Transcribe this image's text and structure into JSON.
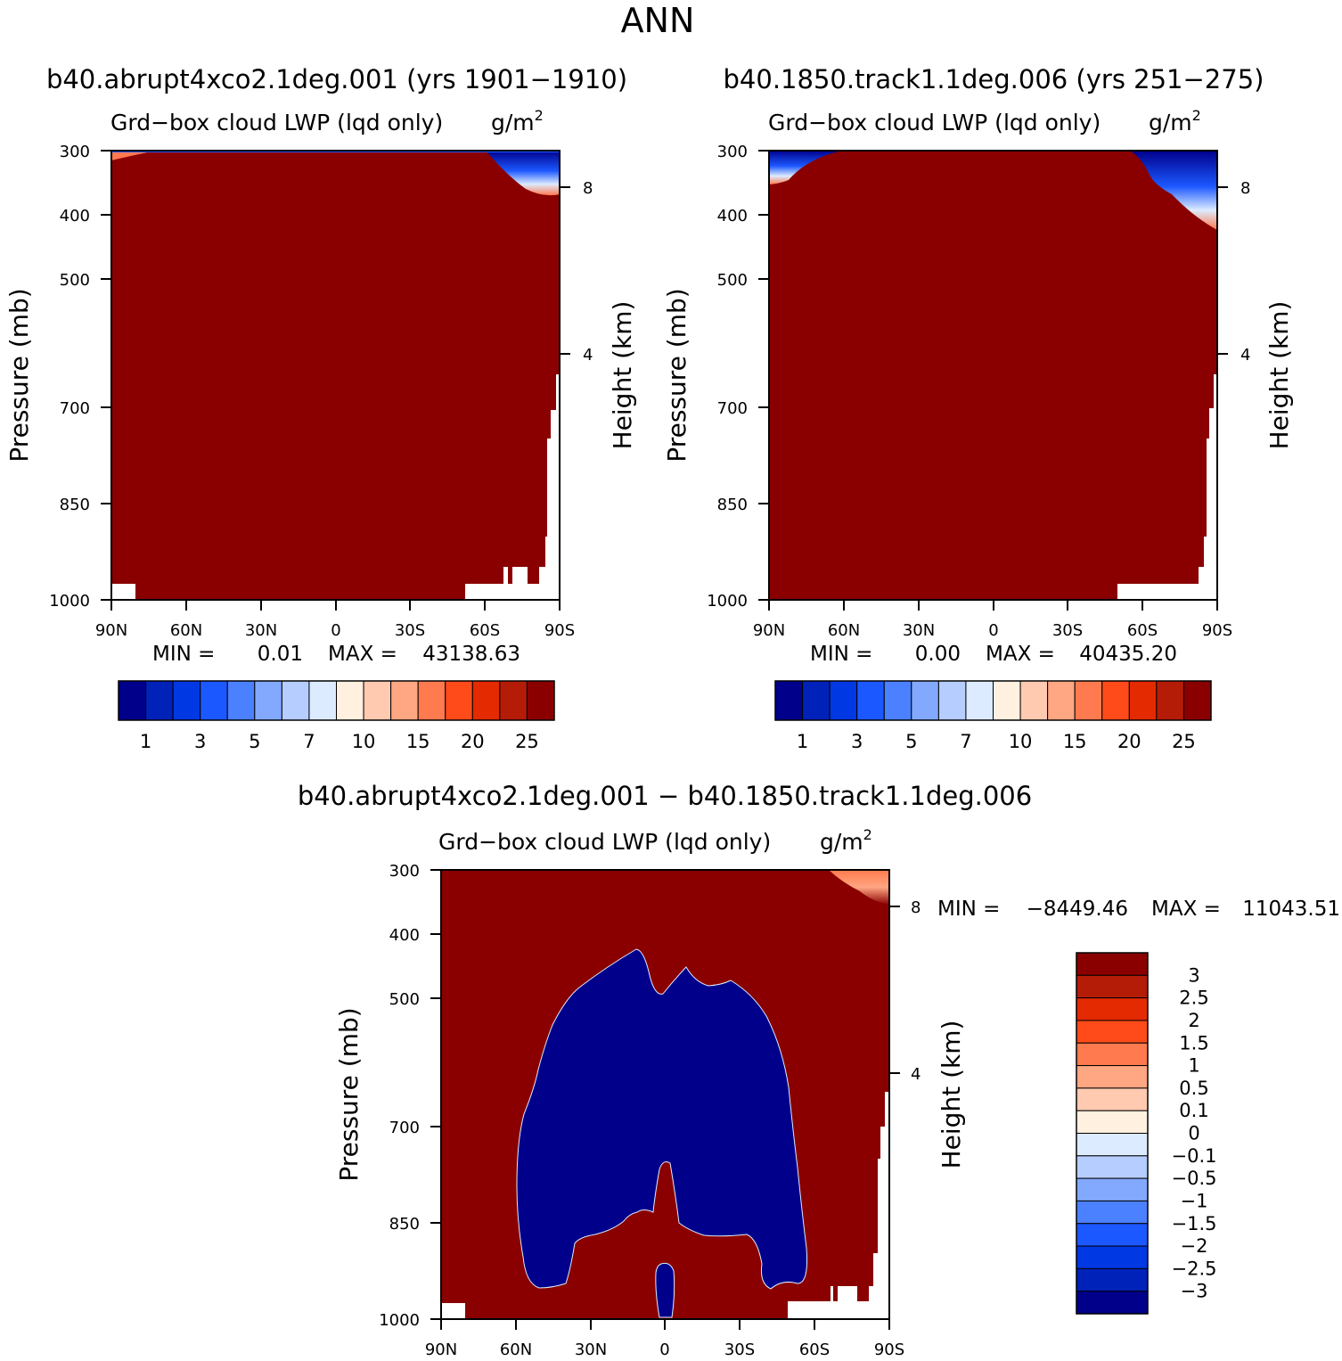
{
  "page": {
    "title": "ANN"
  },
  "chart_data": [
    {
      "type": "heatmap",
      "id": "panel1",
      "title": "b40.abrupt4xco2.1deg.001 (yrs 1901−1910)",
      "field_label": "Grd−box cloud LWP (lqd only)",
      "units_base": "g/m",
      "units_exp": "2",
      "xlabel": "",
      "ylabel": "Pressure (mb)",
      "ylabel_right": "Height (km)",
      "x_ticks": [
        "90N",
        "60N",
        "30N",
        "0",
        "30S",
        "60S",
        "90S"
      ],
      "y_ticks": [
        "300",
        "400",
        "500",
        "700",
        "850",
        "1000"
      ],
      "y_ticks_right": [
        "8",
        "4"
      ],
      "ylim": [
        300,
        1000
      ],
      "min_label": "MIN =",
      "min_value": "0.01",
      "max_label": "MAX =",
      "max_value": "43138.63",
      "colorbar": {
        "colors": [
          "#00008b",
          "#0022b9",
          "#0038e4",
          "#1c58ff",
          "#4b80ff",
          "#83a9ff",
          "#b6cdff",
          "#dcebff",
          "#fff0e0",
          "#ffcab0",
          "#ffa682",
          "#ff7a4e",
          "#ff4a1a",
          "#e42a00",
          "#b41c08",
          "#8a0000"
        ],
        "labels": [
          "1",
          "3",
          "5",
          "7",
          "10",
          "15",
          "20",
          "25"
        ]
      }
    },
    {
      "type": "heatmap",
      "id": "panel2",
      "title": "b40.1850.track1.1deg.006 (yrs 251−275)",
      "field_label": "Grd−box cloud LWP (lqd only)",
      "units_base": "g/m",
      "units_exp": "2",
      "xlabel": "",
      "ylabel": "Pressure (mb)",
      "ylabel_right": "Height (km)",
      "x_ticks": [
        "90N",
        "60N",
        "30N",
        "0",
        "30S",
        "60S",
        "90S"
      ],
      "y_ticks": [
        "300",
        "400",
        "500",
        "700",
        "850",
        "1000"
      ],
      "y_ticks_right": [
        "8",
        "4"
      ],
      "ylim": [
        300,
        1000
      ],
      "min_label": "MIN =",
      "min_value": "0.00",
      "max_label": "MAX =",
      "max_value": "40435.20",
      "colorbar": {
        "colors": [
          "#00008b",
          "#0022b9",
          "#0038e4",
          "#1c58ff",
          "#4b80ff",
          "#83a9ff",
          "#b6cdff",
          "#dcebff",
          "#fff0e0",
          "#ffcab0",
          "#ffa682",
          "#ff7a4e",
          "#ff4a1a",
          "#e42a00",
          "#b41c08",
          "#8a0000"
        ],
        "labels": [
          "1",
          "3",
          "5",
          "7",
          "10",
          "15",
          "20",
          "25"
        ]
      }
    },
    {
      "type": "heatmap",
      "id": "panel3",
      "title": "b40.abrupt4xco2.1deg.001 − b40.1850.track1.1deg.006",
      "field_label": "Grd−box cloud LWP (lqd only)",
      "units_base": "g/m",
      "units_exp": "2",
      "xlabel": "",
      "ylabel": "Pressure (mb)",
      "ylabel_right": "Height (km)",
      "x_ticks": [
        "90N",
        "60N",
        "30N",
        "0",
        "30S",
        "60S",
        "90S"
      ],
      "y_ticks": [
        "300",
        "400",
        "500",
        "700",
        "850",
        "1000"
      ],
      "y_ticks_right": [
        "8",
        "4"
      ],
      "ylim": [
        300,
        1000
      ],
      "min_label": "MIN =",
      "min_value": "−8449.46",
      "max_label": "MAX =",
      "max_value": "11043.51",
      "colorbar": {
        "colors": [
          "#8a0000",
          "#b41c08",
          "#e42a00",
          "#ff4a1a",
          "#ff7a4e",
          "#ffa682",
          "#ffcab0",
          "#fff0e0",
          "#dcebff",
          "#b6cdff",
          "#83a9ff",
          "#4b80ff",
          "#1c58ff",
          "#0038e4",
          "#0022b9",
          "#00008b"
        ],
        "labels": [
          "3",
          "2.5",
          "2",
          "1.5",
          "1",
          "0.5",
          "0.1",
          "0",
          "−0.1",
          "−0.5",
          "−1",
          "−1.5",
          "−2",
          "−2.5",
          "−3"
        ]
      }
    }
  ]
}
